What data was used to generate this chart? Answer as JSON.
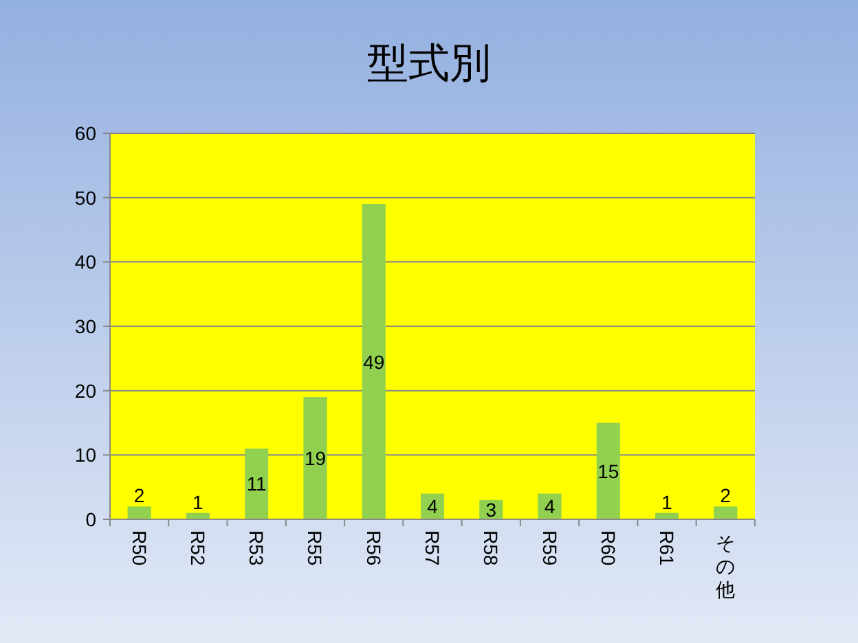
{
  "chart_data": {
    "type": "bar",
    "title": "型式別",
    "categories": [
      "R50",
      "R52",
      "R53",
      "R55",
      "R56",
      "R57",
      "R58",
      "R59",
      "R60",
      "R61",
      "その他"
    ],
    "values": [
      2,
      1,
      11,
      19,
      49,
      4,
      3,
      4,
      15,
      1,
      2
    ],
    "color": "#92d050",
    "ylim": [
      0,
      60
    ],
    "yticks": [
      0,
      10,
      20,
      30,
      40,
      50,
      60
    ],
    "grid": "y",
    "data_labels": true
  }
}
